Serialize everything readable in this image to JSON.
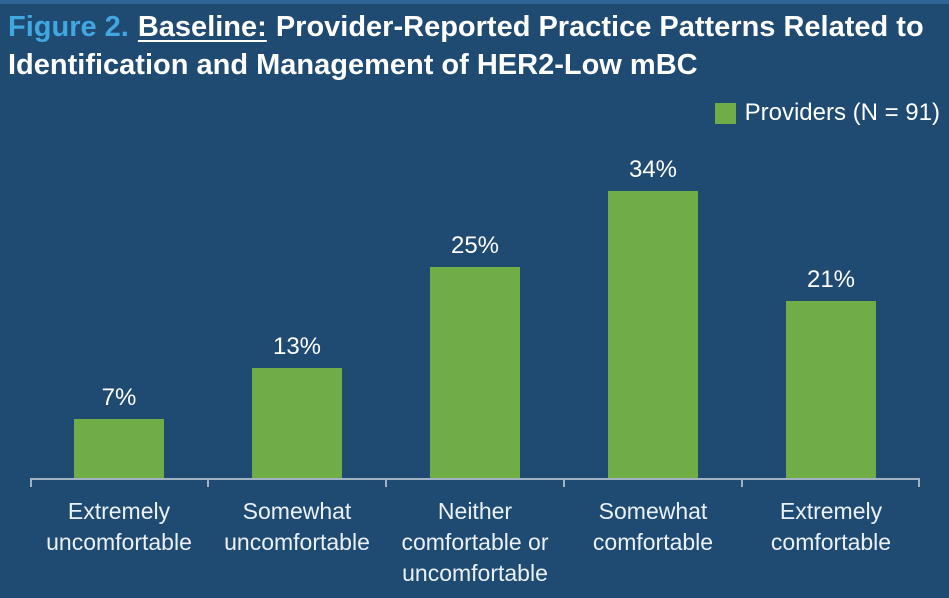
{
  "title": {
    "figure_label": "Figure 2.",
    "baseline_label": "Baseline:",
    "rest": "Provider-Reported Practice Patterns Related to Identification and Management of HER2-Low mBC"
  },
  "legend": {
    "label": "Providers (N = 91)",
    "swatch_icon": "legend-square-icon",
    "swatch_color": "#70AD47"
  },
  "colors": {
    "background": "#1F4A72",
    "top_strip": "#2E6496",
    "figure_label_blue": "#41A7E1",
    "bar_green": "#70AD47",
    "axis_line": "#A3B2C2",
    "text_white": "#FFFFFF"
  },
  "chart_data": {
    "type": "bar",
    "categories": [
      "Extremely uncomfortable",
      "Somewhat uncomfortable",
      "Neither comfortable or uncomfortable",
      "Somewhat comfortable",
      "Extremely comfortable"
    ],
    "values": [
      7,
      13,
      25,
      34,
      21
    ],
    "value_labels": [
      "7%",
      "13%",
      "25%",
      "34%",
      "21%"
    ],
    "series_name": "Providers (N = 91)",
    "title": "Baseline: Provider-Reported Practice Patterns Related to Identification and Management of HER2-Low mBC",
    "xlabel": "",
    "ylabel": "",
    "ylim": [
      0,
      40
    ],
    "grid": false,
    "legend_position": "top-right",
    "bar_color": "#70AD47"
  }
}
